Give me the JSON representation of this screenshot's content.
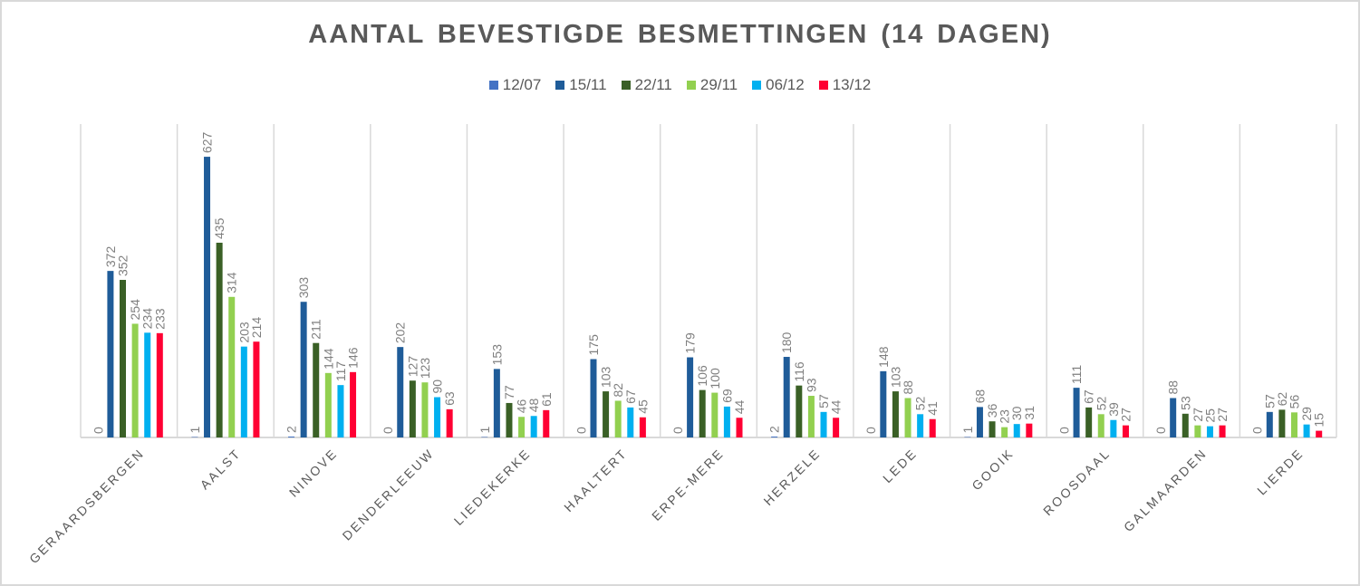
{
  "chart_data": {
    "type": "bar",
    "title": "AANTAL BEVESTIGDE BESMETTINGEN (14 DAGEN)",
    "xlabel": "",
    "ylabel": "",
    "ylim": [
      0,
      700
    ],
    "grid": "vertical category separators",
    "legend_position": "top",
    "categories": [
      "GERAARDSBERGEN",
      "AALST",
      "NINOVE",
      "DENDERLEEUW",
      "LIEDEKERKE",
      "HAALTERT",
      "ERPE-MERE",
      "HERZELE",
      "LEDE",
      "GOOIK",
      "ROOSDAAL",
      "GALMAARDEN",
      "LIERDE"
    ],
    "series": [
      {
        "name": "12/07",
        "color": "#4472c4",
        "values": [
          0,
          1,
          2,
          0,
          1,
          0,
          0,
          2,
          0,
          1,
          0,
          0,
          0
        ]
      },
      {
        "name": "15/11",
        "color": "#1f5c99",
        "values": [
          372,
          627,
          303,
          202,
          153,
          175,
          179,
          180,
          148,
          68,
          111,
          88,
          57
        ]
      },
      {
        "name": "22/11",
        "color": "#3a6026",
        "values": [
          352,
          435,
          211,
          127,
          77,
          103,
          106,
          116,
          103,
          36,
          67,
          53,
          62
        ]
      },
      {
        "name": "29/11",
        "color": "#92d050",
        "values": [
          254,
          314,
          144,
          123,
          46,
          82,
          100,
          93,
          88,
          23,
          52,
          27,
          56
        ]
      },
      {
        "name": "06/12",
        "color": "#00b0f0",
        "values": [
          234,
          203,
          117,
          90,
          48,
          67,
          69,
          57,
          52,
          30,
          39,
          25,
          29
        ]
      },
      {
        "name": "13/12",
        "color": "#ff0033",
        "values": [
          233,
          214,
          146,
          63,
          61,
          45,
          44,
          44,
          41,
          31,
          27,
          27,
          15
        ]
      }
    ]
  }
}
